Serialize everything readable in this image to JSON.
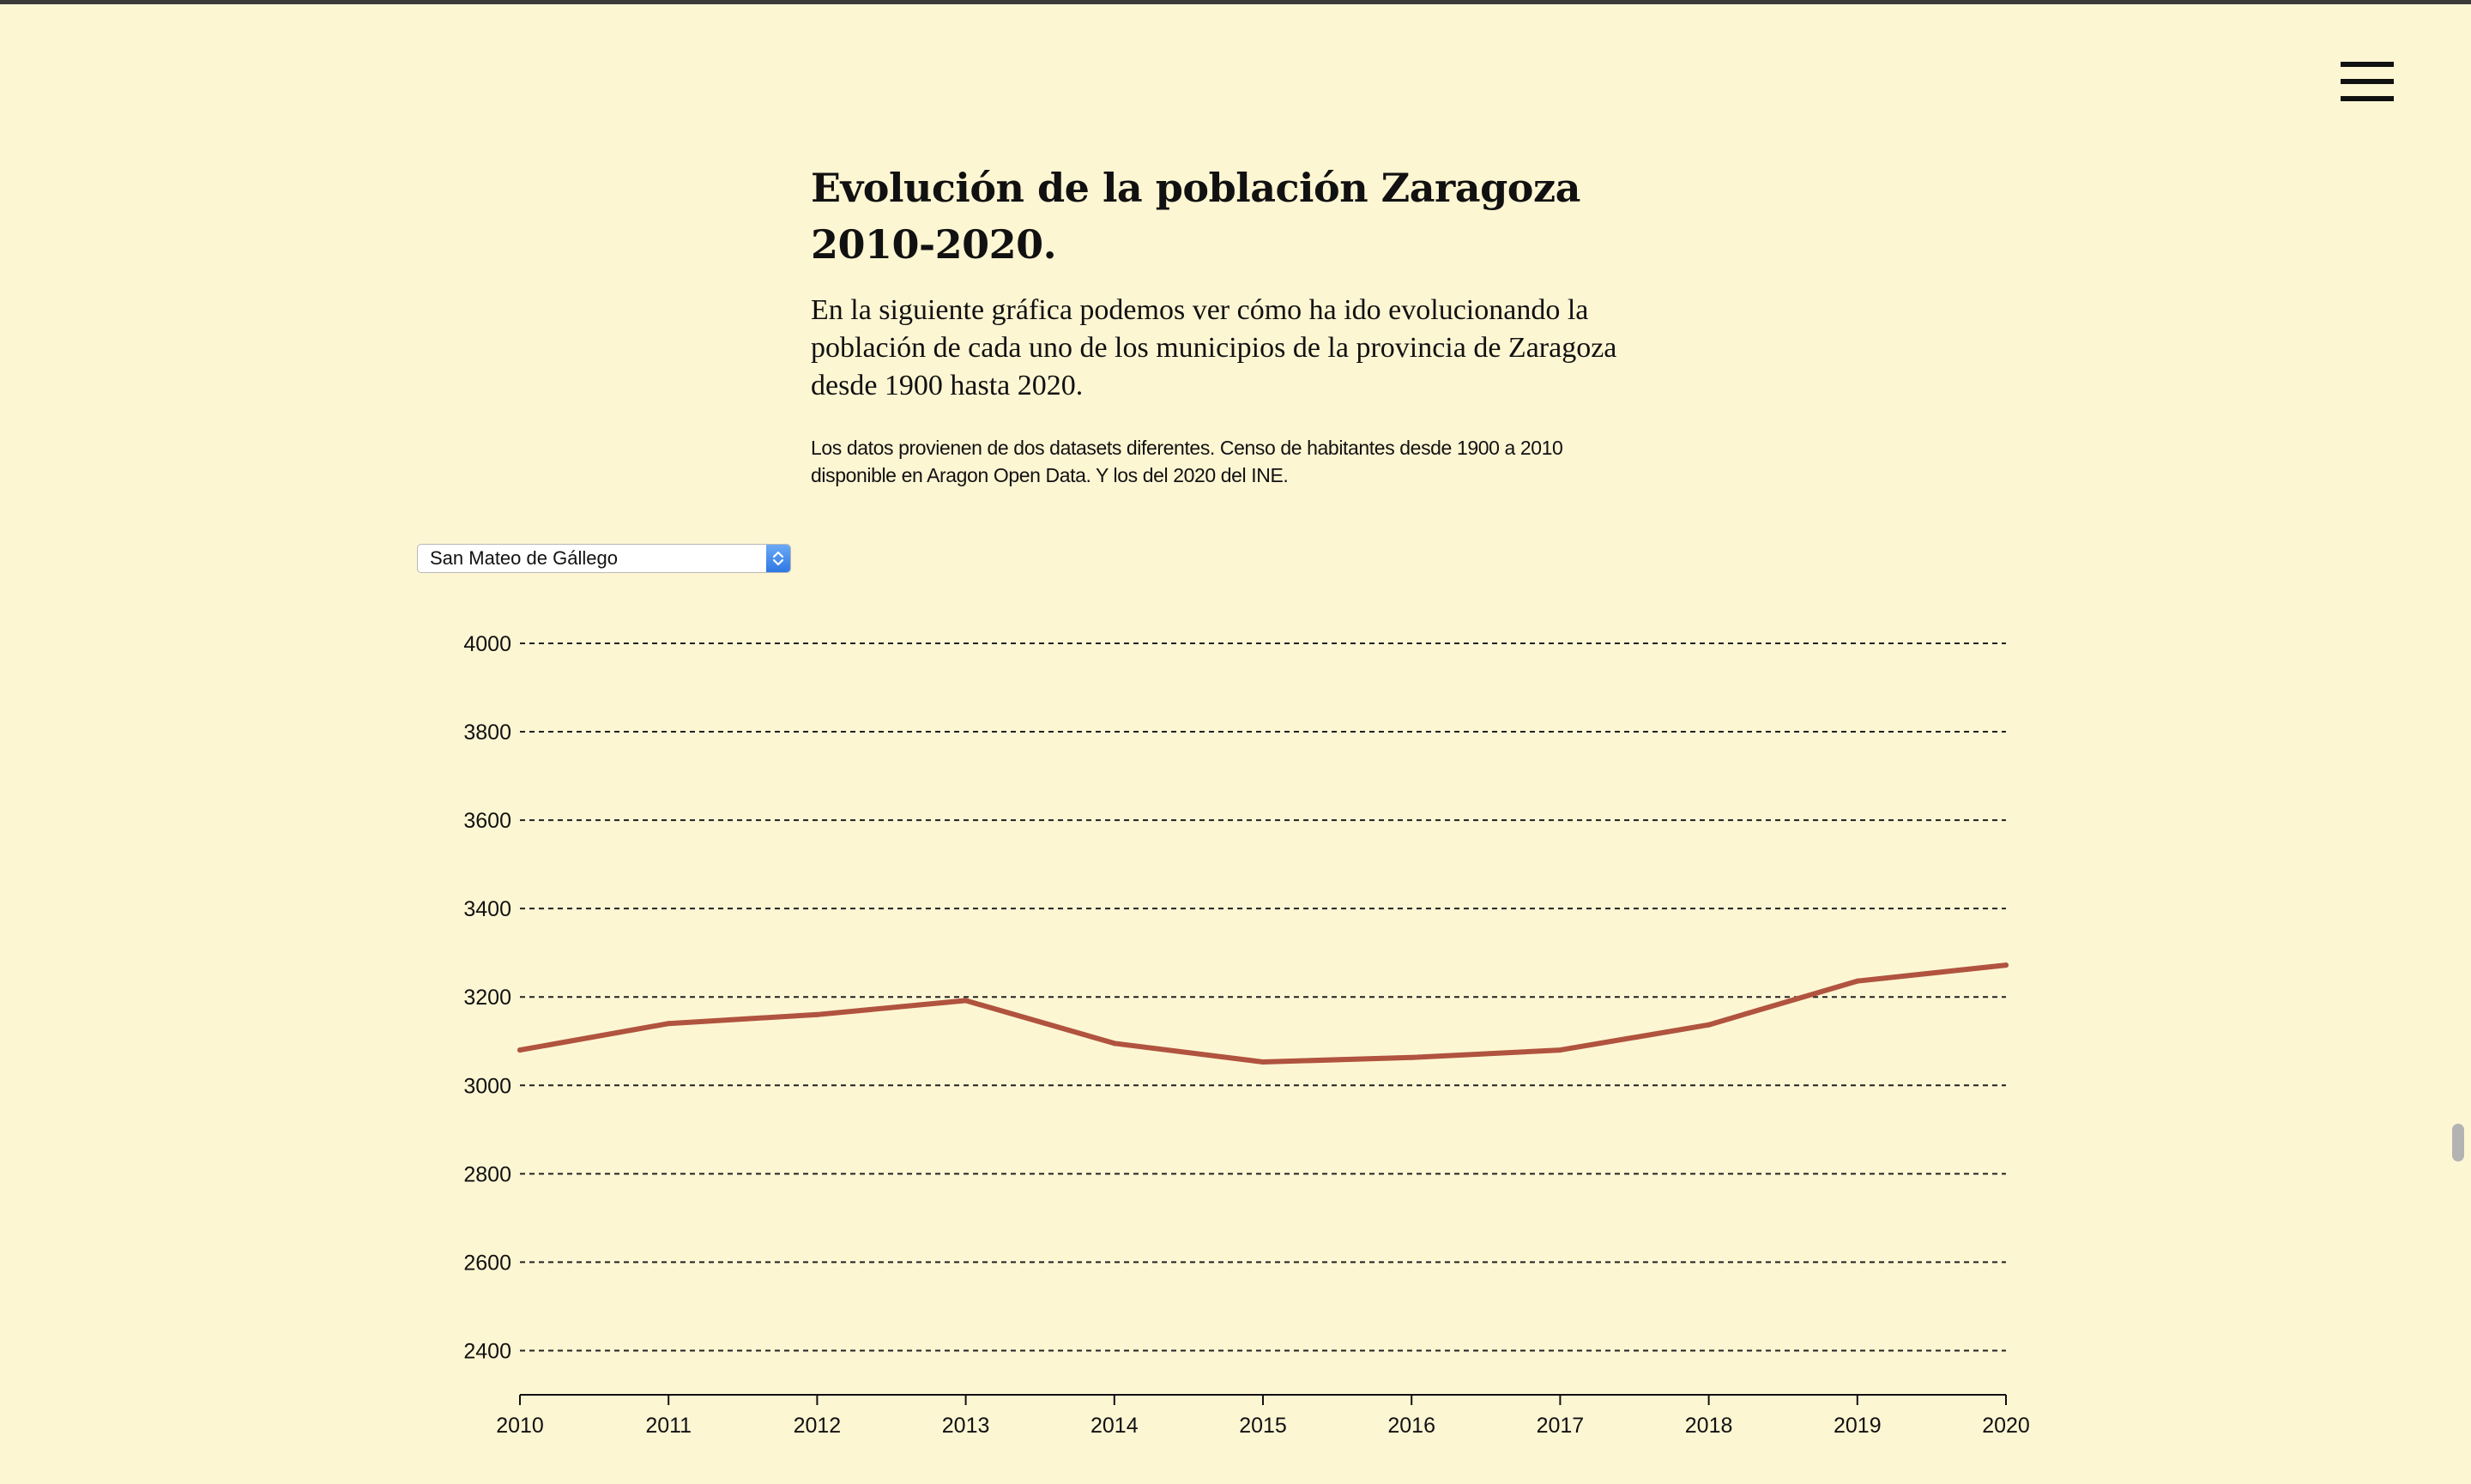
{
  "header": {
    "menu_icon": "hamburger-menu-icon"
  },
  "intro": {
    "title": "Evolución de la población Zaragoza 2010-2020.",
    "lead": "En la siguiente gráfica podemos ver cómo ha ido evolucionando la población de cada uno de los municipios de la provincia de Zaragoza desde 1900 hasta 2020.",
    "note": "Los datos provienen de dos datasets diferentes. Censo de habitantes desde 1900 a 2010 disponible en Aragon Open Data. Y los del 2020 del INE."
  },
  "municipality_select": {
    "selected": "San Mateo de Gállego",
    "icon": "select-arrows-icon"
  },
  "chart_data": {
    "type": "line",
    "title": "",
    "xlabel": "",
    "ylabel": "",
    "x": [
      2010,
      2011,
      2012,
      2013,
      2014,
      2015,
      2016,
      2017,
      2018,
      2019,
      2020
    ],
    "series": [
      {
        "values": [
          3080,
          3140,
          3160,
          3192,
          3095,
          3053,
          3063,
          3080,
          3137,
          3236,
          3272
        ],
        "color": "#b0533f"
      }
    ],
    "xlim": [
      2010,
      2020
    ],
    "ylim": [
      2300,
      4000
    ],
    "yticks": [
      2400,
      2600,
      2800,
      3000,
      3200,
      3400,
      3600,
      3800,
      4000
    ],
    "grid": true,
    "grid_style": "dashed horizontal",
    "legend": "none"
  }
}
